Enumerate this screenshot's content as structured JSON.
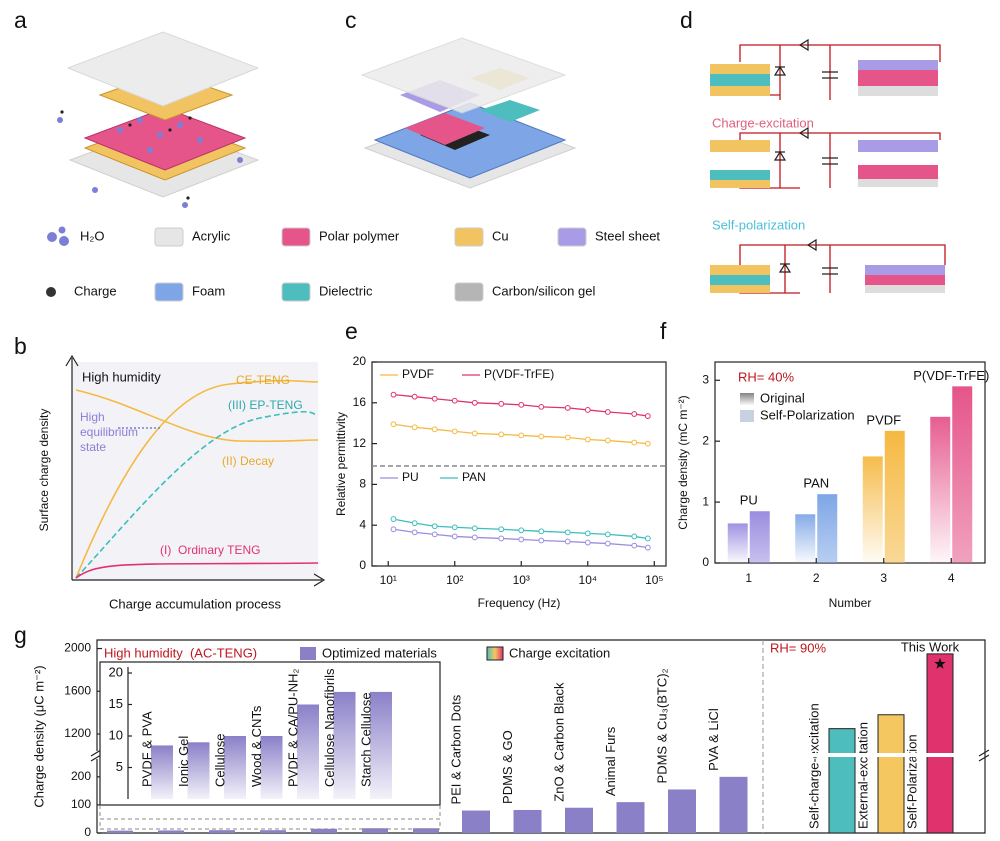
{
  "panels": {
    "labels": [
      "a",
      "b",
      "c",
      "d",
      "e",
      "f",
      "g"
    ]
  },
  "legend": {
    "items": [
      {
        "label": "H₂O",
        "color": "#7b7fd6"
      },
      {
        "label": "Acrylic",
        "color": "#e6e6e6"
      },
      {
        "label": "Polar polymer",
        "color": "#e5558a"
      },
      {
        "label": "Cu",
        "color": "#f2c461"
      },
      {
        "label": "Steel sheet",
        "color": "#a99be6"
      },
      {
        "label": "Charge",
        "color": "#333333"
      },
      {
        "label": "Foam",
        "color": "#7ea6e6"
      },
      {
        "label": "Dielectric",
        "color": "#4dbdbd"
      },
      {
        "label": "Carbon/silicon gel",
        "color": "#b5b5b5"
      }
    ]
  },
  "diagram_d": {
    "labels": [
      "Charge-excitation",
      "Self-polarization"
    ]
  },
  "schematic_b": {
    "y_label": "Surface charge density",
    "x_label": "Charge accumulation process",
    "condition": "High humidity",
    "ce_label": "CE-TENG",
    "ep_label": "(III) EP-TENG",
    "equilibrium_label": [
      "High",
      "equilibrium",
      "state"
    ],
    "decay_label": "(II) Decay",
    "ordinary_label": "(I)  Ordinary TENG"
  },
  "chart_data": [
    {
      "type": "line",
      "x_label": "Frequency (Hz)",
      "y_label": "Relative permittivity",
      "log_x": true,
      "xlim": [
        5.7,
        150000
      ],
      "ylim": [
        0,
        20
      ],
      "xticks": [
        {
          "value": 10,
          "label": "10¹"
        },
        {
          "value": 100,
          "label": "10²"
        },
        {
          "value": 1000,
          "label": "10³"
        },
        {
          "value": 10000,
          "label": "10⁴"
        },
        {
          "value": 100000,
          "label": "10⁵"
        }
      ],
      "yticks": [
        0,
        4,
        8,
        12,
        16,
        20
      ],
      "reference_line": 9.8,
      "x": [
        12,
        25,
        50,
        100,
        200,
        500,
        1000,
        2000,
        5000,
        10000,
        20000,
        50000,
        80000
      ],
      "series": [
        {
          "name": "PVDF",
          "color": "#f5b942",
          "values": [
            13.9,
            13.6,
            13.4,
            13.2,
            13.0,
            12.9,
            12.8,
            12.7,
            12.6,
            12.4,
            12.3,
            12.1,
            12.0
          ]
        },
        {
          "name": "P(VDF-TrFE)",
          "color": "#e0336e",
          "values": [
            16.8,
            16.6,
            16.4,
            16.2,
            16.0,
            15.9,
            15.8,
            15.6,
            15.5,
            15.3,
            15.1,
            14.9,
            14.7
          ]
        },
        {
          "name": "PU",
          "color": "#9b8de0",
          "values": [
            3.6,
            3.3,
            3.1,
            2.9,
            2.8,
            2.7,
            2.6,
            2.5,
            2.4,
            2.3,
            2.2,
            2.0,
            1.8
          ]
        },
        {
          "name": "PAN",
          "color": "#3dbdbd",
          "values": [
            4.6,
            4.2,
            3.9,
            3.8,
            3.7,
            3.6,
            3.5,
            3.4,
            3.3,
            3.2,
            3.1,
            2.9,
            2.7
          ]
        }
      ]
    },
    {
      "type": "bar",
      "x_label": "Number",
      "y_label": "Charge density (mC m⁻²)",
      "categories": [
        "1",
        "2",
        "3",
        "4"
      ],
      "ylim": [
        0,
        3.3
      ],
      "yticks": [
        0,
        1,
        2,
        3
      ],
      "series": [
        {
          "name": "Original",
          "color": "#bbbbbb",
          "values": [
            0.65,
            0.8,
            1.75,
            2.4
          ]
        },
        {
          "name": "Self-Polarization",
          "color": "#c9d0e0",
          "values": [
            0.85,
            1.13,
            2.17,
            2.9
          ]
        }
      ],
      "colors": [
        "#9b8de0",
        "#7ea6e6",
        "#f5b942",
        "#e5558a"
      ],
      "bar_labels": [
        "PU",
        "PAN",
        "PVDF",
        "P(VDF-TrFE)"
      ],
      "annotation": "RH= 40%"
    },
    {
      "type": "bar",
      "y_label": "Charge density (μC m⁻²)",
      "ylim": [
        0,
        2080
      ],
      "axis_break": [
        260,
        1050
      ],
      "yticks": [
        0,
        100,
        200,
        1200,
        1600,
        2000
      ],
      "categories": [
        "PEI & Carbon Dots",
        "PDMS & GO",
        "ZnO & Carbon Black",
        "Animal Furs",
        "PDMS & Cu₃(BTC)₂",
        "PVA & LiCl",
        "Self-charge-excitation",
        "External-excitation",
        "Self-Polarization"
      ],
      "values": [
        80,
        82,
        90,
        110,
        155,
        200,
        1250,
        1380,
        1950
      ],
      "colors": [
        "#8a80c8",
        "#8a80c8",
        "#8a80c8",
        "#8a80c8",
        "#8a80c8",
        "#8a80c8",
        "#4dbdbd",
        "#f5c760",
        "#e0336e"
      ],
      "legend": [
        {
          "name": "Optimized materials",
          "color": "#8a80c8"
        },
        {
          "name": "Charge excitation",
          "colors": [
            "#4dbdbd",
            "#f5c760",
            "#e0336e"
          ]
        }
      ],
      "annotations": [
        "High humidity  (AC-TENG)",
        "RH= 90%",
        "This Work"
      ]
    },
    {
      "type": "bar",
      "categories": [
        "PVDF & PVA",
        "Ionic Gel",
        "Cellulose",
        "Wood & CNTs",
        "PVDF & CA/PU-NH₂",
        "Cellulose Nanofibrils",
        "Starch Cellulose"
      ],
      "values": [
        8.5,
        9,
        10,
        10,
        15,
        17,
        17
      ],
      "color": "#8a80c8",
      "ylim": [
        0,
        20
      ],
      "yticks": [
        5,
        10,
        15,
        20
      ]
    }
  ]
}
